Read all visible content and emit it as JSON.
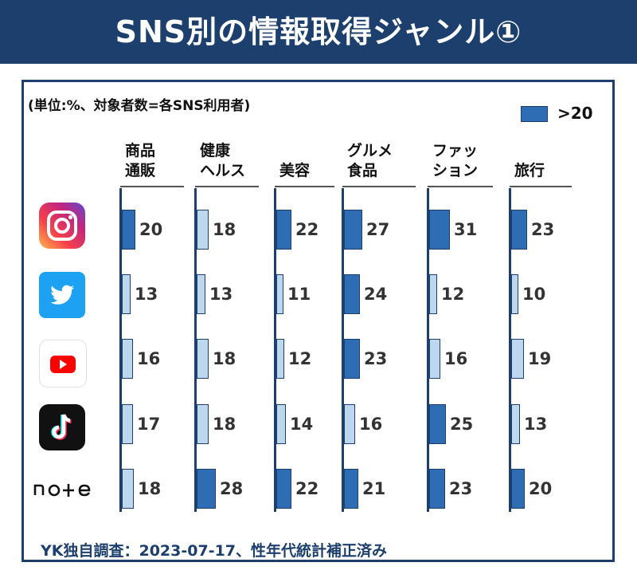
{
  "title": "SNS別の情報取得ジャンル①",
  "unit_note": "(単位:%、対象者数=各SNS利用者)",
  "legend": {
    "label": ">20",
    "color": "#2e6db4"
  },
  "footer_note": "YK独自調査：2023-07-17、性年代統計補正済み",
  "platforms": [
    {
      "name": "instagram",
      "icon": "instagram-logo"
    },
    {
      "name": "twitter",
      "icon": "twitter-bird"
    },
    {
      "name": "youtube",
      "icon": "youtube-play"
    },
    {
      "name": "tiktok",
      "icon": "tiktok-note"
    },
    {
      "name": "note",
      "logo_text": "note"
    }
  ],
  "chart_data": {
    "type": "bar",
    "orientation": "horizontal",
    "categories": [
      "商品\n通販",
      "健康\nヘルス",
      "美容",
      "グルメ\n食品",
      "ファッ\nション",
      "旅行"
    ],
    "highlight_threshold": 20,
    "colors": {
      "high": "#2e6db4",
      "low": "#bdd7ee",
      "border": "#1c3f6e"
    },
    "series": [
      {
        "values": [
          20,
          18,
          22,
          27,
          31,
          23
        ]
      },
      {
        "values": [
          13,
          13,
          11,
          24,
          12,
          10
        ]
      },
      {
        "values": [
          16,
          18,
          12,
          23,
          16,
          19
        ]
      },
      {
        "values": [
          17,
          18,
          14,
          16,
          25,
          13
        ]
      },
      {
        "values": [
          18,
          28,
          22,
          21,
          23,
          20
        ]
      }
    ]
  }
}
